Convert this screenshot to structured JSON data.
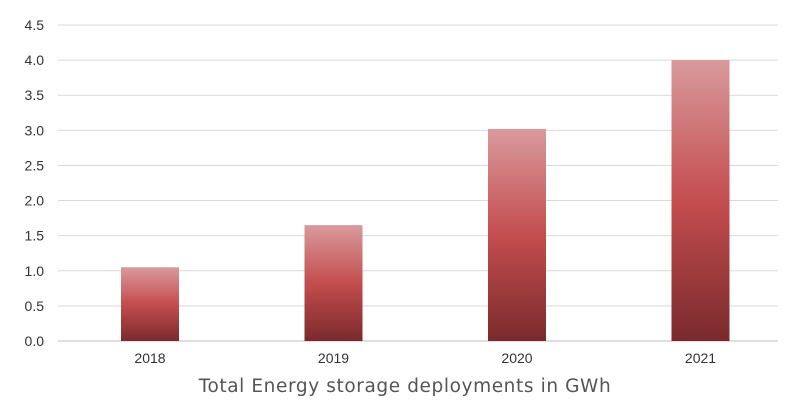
{
  "chart_data": {
    "type": "bar",
    "categories": [
      "2018",
      "2019",
      "2020",
      "2021"
    ],
    "values": [
      1.05,
      1.65,
      3.02,
      4.0
    ],
    "title": "",
    "xlabel": "Total Energy storage deployments in GWh",
    "ylabel": "",
    "ylim": [
      0,
      4.5
    ],
    "yticks": [
      "0.0",
      "0.5",
      "1.0",
      "1.5",
      "2.0",
      "2.5",
      "3.0",
      "3.5",
      "4.0",
      "4.5"
    ],
    "grid": true,
    "legend": "none",
    "bar_colors": {
      "top": "#d99a9c",
      "middle": "#c44d4f",
      "bottom": "#7a2a2c"
    }
  }
}
